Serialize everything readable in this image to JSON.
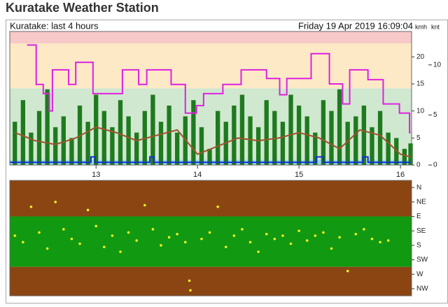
{
  "header": {
    "title": "Kuratake Weather Station",
    "subtitle": "Kuratake: last 4 hours",
    "datetime": "Friday 19 Apr 2019 16:09:04",
    "unit_left": "kmh",
    "unit_right": "knt"
  },
  "chart_data": [
    {
      "type": "line",
      "xlim": [
        12.15,
        16.11
      ],
      "xticks": [
        13,
        14,
        15,
        16
      ],
      "ylim": [
        0,
        24.7
      ],
      "yticks": [
        0,
        5,
        10,
        15,
        20
      ],
      "y2lim": [
        0,
        13.34
      ],
      "y2ticks": [
        0,
        5,
        10
      ],
      "bands": [
        {
          "from": 0,
          "to": 1,
          "color": "#9fd3f0"
        },
        {
          "from": 1,
          "to": 14.2,
          "color": "#cfe8cf"
        },
        {
          "from": 14.2,
          "to": 22.5,
          "color": "#fde9c6"
        },
        {
          "from": 22.5,
          "to": 24.7,
          "color": "#f8c9c9"
        }
      ],
      "series": [
        {
          "type": "bar",
          "color": "#1f7a1f",
          "x": [
            12.2,
            12.28,
            12.36,
            12.44,
            12.52,
            12.6,
            12.68,
            12.76,
            12.84,
            12.92,
            13.0,
            13.08,
            13.16,
            13.24,
            13.32,
            13.4,
            13.48,
            13.56,
            13.64,
            13.72,
            13.8,
            13.88,
            13.96,
            14.04,
            14.12,
            14.2,
            14.28,
            14.36,
            14.44,
            14.52,
            14.6,
            14.68,
            14.76,
            14.84,
            14.92,
            15.0,
            15.08,
            15.16,
            15.24,
            15.32,
            15.4,
            15.48,
            15.56,
            15.64,
            15.72,
            15.8,
            15.88,
            15.96,
            16.04,
            16.1
          ],
          "values": [
            8,
            12,
            6,
            10,
            14,
            7,
            9,
            5,
            11,
            8,
            13,
            10,
            7,
            12,
            9,
            6,
            10,
            13,
            8,
            11,
            6,
            9,
            12,
            7,
            3,
            10,
            8,
            11,
            13,
            9,
            7,
            12,
            10,
            8,
            13,
            11,
            9,
            6,
            12,
            10,
            14,
            8,
            9,
            11,
            7,
            10,
            6,
            5,
            3,
            4
          ]
        },
        {
          "type": "line",
          "color": "#e020e0",
          "x": [
            12.32,
            12.41,
            12.41,
            12.48,
            12.48,
            12.54,
            12.54,
            12.57,
            12.57,
            12.73,
            12.73,
            12.8,
            12.8,
            12.97,
            12.97,
            13.26,
            13.26,
            13.42,
            13.42,
            13.5,
            13.5,
            13.74,
            13.74,
            13.88,
            13.88,
            13.99,
            13.99,
            14.06,
            14.06,
            14.25,
            14.25,
            14.43,
            14.43,
            14.68,
            14.68,
            14.81,
            14.81,
            14.88,
            14.88,
            15.12,
            15.12,
            15.3,
            15.3,
            15.43,
            15.43,
            15.5,
            15.5,
            15.68,
            15.68,
            15.83,
            15.83,
            15.99,
            15.99,
            16.09,
            16.09,
            16.1
          ],
          "values": [
            22.2,
            22.2,
            14.9,
            14.9,
            13.2,
            13.2,
            10,
            10,
            17.6,
            17.6,
            14.9,
            14.9,
            19,
            19,
            13.2,
            13.2,
            17.6,
            17.6,
            14.9,
            14.9,
            17.6,
            17.6,
            14.9,
            14.9,
            9.6,
            9.6,
            11,
            11,
            13.2,
            13.2,
            14.9,
            14.9,
            17.6,
            17.6,
            16,
            16,
            13,
            13,
            16,
            16,
            20.6,
            20.6,
            15,
            15,
            11.3,
            11.3,
            17.6,
            17.6,
            15.8,
            15.8,
            11.3,
            11.3,
            9.6,
            9.6,
            6,
            6
          ]
        },
        {
          "type": "line",
          "color": "#a0522d",
          "x": [
            12.2,
            12.4,
            12.6,
            12.8,
            13.0,
            13.2,
            13.4,
            13.6,
            13.8,
            14.0,
            14.2,
            14.4,
            14.6,
            14.8,
            15.0,
            15.2,
            15.4,
            15.6,
            15.8,
            16.0,
            16.1
          ],
          "values": [
            6,
            4.5,
            3.8,
            5,
            7,
            6,
            4.5,
            5.5,
            6.5,
            2,
            3.5,
            5,
            4.5,
            5,
            6,
            5,
            3,
            6.5,
            5.5,
            2,
            1.5
          ]
        },
        {
          "type": "line",
          "color": "#1030d0",
          "x": [
            12.15,
            12.95,
            12.95,
            12.99,
            12.99,
            13.53,
            13.53,
            13.57,
            13.57,
            15.17,
            15.17,
            15.24,
            15.24,
            15.63,
            15.63,
            15.68,
            15.68,
            16.1
          ],
          "values": [
            0.5,
            0.5,
            1.5,
            1.5,
            0.5,
            0.5,
            1.5,
            1.5,
            0.5,
            0.5,
            1.5,
            1.5,
            0.5,
            0.5,
            1.5,
            1.5,
            0.5,
            0.5
          ]
        }
      ]
    },
    {
      "type": "scatter",
      "invert_y": true,
      "color": "#f0f020",
      "xlim": [
        12.15,
        16.11
      ],
      "ylim": [
        -22,
        337
      ],
      "yticks": [
        {
          "value": 0,
          "label": "N"
        },
        {
          "value": 45,
          "label": "NE"
        },
        {
          "value": 90,
          "label": "E"
        },
        {
          "value": 135,
          "label": "SE"
        },
        {
          "value": 180,
          "label": "S"
        },
        {
          "value": 225,
          "label": "SW"
        },
        {
          "value": 270,
          "label": "W"
        },
        {
          "value": 315,
          "label": "NW"
        }
      ],
      "bands": [
        {
          "from": -22,
          "to": 90,
          "color": "#8b4513"
        },
        {
          "from": 90,
          "to": 247,
          "color": "#119911"
        },
        {
          "from": 247,
          "to": 337,
          "color": "#8b4513"
        }
      ],
      "x": [
        12.2,
        12.28,
        12.36,
        12.44,
        12.52,
        12.6,
        12.68,
        12.76,
        12.84,
        12.92,
        13.0,
        13.08,
        13.16,
        13.24,
        13.32,
        13.4,
        13.48,
        13.56,
        13.64,
        13.72,
        13.8,
        13.88,
        13.92,
        13.93,
        14.04,
        14.12,
        14.2,
        14.28,
        14.36,
        14.44,
        14.52,
        14.6,
        14.68,
        14.76,
        14.84,
        14.92,
        15.0,
        15.08,
        15.16,
        15.24,
        15.32,
        15.4,
        15.48,
        15.56,
        15.64,
        15.72,
        15.8,
        15.88
      ],
      "values": [
        150,
        170,
        60,
        140,
        190,
        45,
        130,
        160,
        175,
        70,
        120,
        185,
        150,
        200,
        140,
        165,
        55,
        130,
        180,
        155,
        145,
        170,
        290,
        320,
        160,
        140,
        60,
        185,
        150,
        130,
        170,
        200,
        145,
        160,
        150,
        175,
        135,
        165,
        150,
        140,
        190,
        155,
        260,
        145,
        130,
        160,
        170,
        165
      ]
    }
  ]
}
